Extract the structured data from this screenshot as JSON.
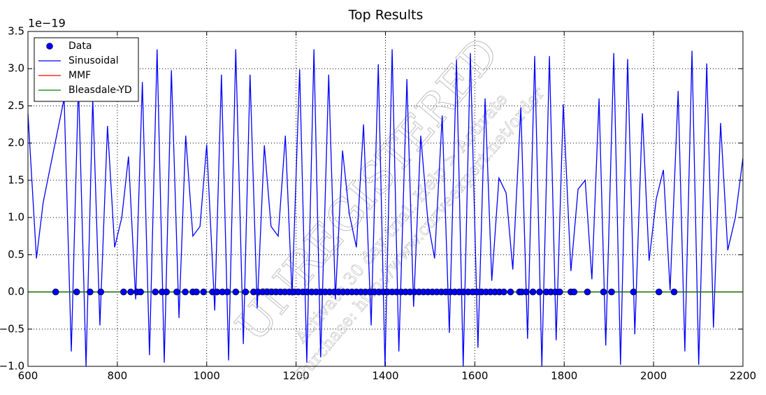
{
  "chart_data": {
    "type": "line",
    "title": "Top Results",
    "y_offset_label": "1e−19",
    "xlim": [
      600,
      2200
    ],
    "xticks": [
      600,
      800,
      1000,
      1200,
      1400,
      1600,
      1800,
      2000,
      2200
    ],
    "ylim": [
      -1,
      3.5
    ],
    "yticks": [
      {
        "value": -1,
        "label": "−1.0"
      },
      {
        "value": -0.5,
        "label": "−0.5"
      },
      {
        "value": 0,
        "label": "0.0"
      },
      0.5,
      {
        "value": 1,
        "label": "1.0"
      },
      1.5,
      {
        "value": 2,
        "label": "2.0"
      },
      2.5,
      {
        "value": 3,
        "label": "3.0"
      },
      3.5
    ],
    "grid": true,
    "legend": "upper-left",
    "series": [
      {
        "name": "Data",
        "color": "#0000ff",
        "style": "marker",
        "x": [
          662,
          709,
          739,
          763,
          814,
          830,
          844,
          852,
          885,
          900,
          910,
          933,
          952,
          969,
          977,
          993,
          1013,
          1023,
          1035,
          1046,
          1065,
          1087,
          1105,
          1115,
          1125,
          1135,
          1145,
          1155,
          1165,
          1175,
          1185,
          1195,
          1205,
          1215,
          1225,
          1235,
          1245,
          1255,
          1265,
          1275,
          1285,
          1295,
          1305,
          1315,
          1325,
          1335,
          1345,
          1355,
          1365,
          1375,
          1385,
          1395,
          1405,
          1415,
          1425,
          1435,
          1445,
          1455,
          1465,
          1475,
          1485,
          1495,
          1505,
          1515,
          1525,
          1535,
          1545,
          1555,
          1565,
          1575,
          1585,
          1595,
          1605,
          1615,
          1625,
          1635,
          1645,
          1655,
          1665,
          1680,
          1700,
          1705,
          1715,
          1730,
          1745,
          1760,
          1770,
          1780,
          1790,
          1815,
          1822,
          1852,
          1888,
          1906,
          1955,
          2012,
          2046
        ],
        "values": [
          0,
          0,
          0,
          0,
          0,
          0,
          0,
          0,
          0,
          0,
          0,
          0,
          0,
          0,
          0,
          0,
          0,
          0,
          0,
          0,
          0,
          0,
          0,
          0,
          0,
          0,
          0,
          0,
          0,
          0,
          0,
          0,
          0,
          0,
          0,
          0,
          0,
          0,
          0,
          0,
          0,
          0,
          0,
          0,
          0,
          0,
          0,
          0,
          0,
          0,
          0,
          0,
          0,
          0,
          0,
          0,
          0,
          0,
          0,
          0,
          0,
          0,
          0,
          0,
          0,
          0,
          0,
          0,
          0,
          0,
          0,
          0,
          0,
          0,
          0,
          0,
          0,
          0,
          0,
          0,
          0,
          0,
          0,
          0,
          0,
          0,
          0,
          0,
          0,
          0,
          0,
          0,
          0,
          0,
          0,
          0,
          0
        ]
      },
      {
        "name": "Sinusoidal",
        "color": "#0000ff",
        "style": "line",
        "x": [
          600,
          619,
          634,
          650,
          681,
          697,
          713,
          730,
          745,
          761,
          778,
          794,
          810,
          825,
          841,
          856,
          872,
          889,
          905,
          921,
          938,
          953,
          969,
          985,
          1000,
          1018,
          1033,
          1049,
          1065,
          1082,
          1097,
          1113,
          1129,
          1144,
          1160,
          1176,
          1191,
          1208,
          1224,
          1240,
          1255,
          1273,
          1288,
          1304,
          1319,
          1335,
          1351,
          1368,
          1384,
          1399,
          1415,
          1430,
          1448,
          1463,
          1479,
          1495,
          1510,
          1527,
          1543,
          1559,
          1574,
          1590,
          1607,
          1623,
          1638,
          1654,
          1670,
          1685,
          1703,
          1718,
          1734,
          1750,
          1767,
          1782,
          1798,
          1815,
          1831,
          1847,
          1862,
          1878,
          1893,
          1911,
          1926,
          1942,
          1958,
          1975,
          1990,
          2006,
          2022,
          2037,
          2055,
          2070,
          2086,
          2101,
          2119,
          2134,
          2150,
          2166,
          2183,
          2200
        ],
        "values": [
          2.4,
          0.45,
          1.2,
          1.68,
          2.6,
          -0.8,
          2.8,
          -1.0,
          2.6,
          -0.45,
          2.23,
          0.6,
          1.0,
          1.82,
          -0.1,
          2.82,
          -0.85,
          3.26,
          -0.95,
          2.98,
          -0.35,
          2.1,
          0.75,
          0.88,
          1.98,
          -0.25,
          2.92,
          -0.92,
          3.26,
          -0.7,
          2.92,
          -0.22,
          1.97,
          0.88,
          0.75,
          2.1,
          -0.05,
          2.99,
          -0.95,
          3.26,
          -0.88,
          2.92,
          -0.1,
          1.9,
          1.05,
          0.6,
          2.25,
          -0.45,
          3.06,
          -1.0,
          3.26,
          -0.8,
          2.86,
          -0.2,
          2.1,
          0.95,
          0.45,
          2.37,
          -0.55,
          3.12,
          -1.0,
          3.21,
          -0.75,
          2.6,
          0.15,
          1.53,
          1.33,
          0.3,
          2.48,
          -0.63,
          3.17,
          -1.0,
          3.17,
          -0.65,
          2.52,
          0.28,
          1.38,
          1.5,
          0.17,
          2.6,
          -0.72,
          3.21,
          -0.98,
          3.13,
          -0.57,
          2.4,
          0.42,
          1.25,
          1.64,
          0.02,
          2.7,
          -0.8,
          3.24,
          -0.98,
          3.07,
          -0.48,
          2.27,
          0.56,
          1.0,
          1.8
        ]
      },
      {
        "name": "MMF",
        "color": "#ff0000",
        "style": "line",
        "x": [
          600,
          2200
        ],
        "values": [
          0,
          0
        ]
      },
      {
        "name": "Bleasdale-YD",
        "color": "#008000",
        "style": "line",
        "x": [
          600,
          2200
        ],
        "values": [
          0,
          0
        ]
      }
    ],
    "watermark": [
      "UNREGISTERED",
      "Activate 30 day trial: Help > Activate",
      "Purchase: http://www.curveexpert.net/order"
    ]
  }
}
